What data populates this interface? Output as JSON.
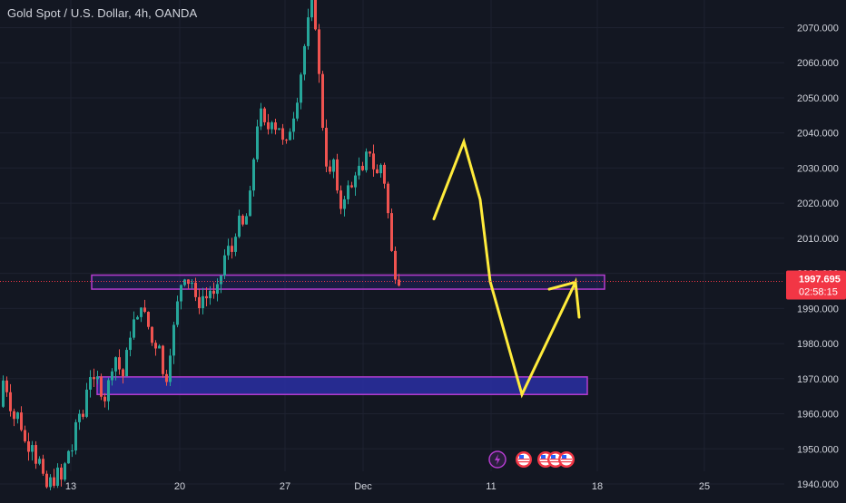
{
  "header": {
    "title": "Gold Spot / U.S. Dollar, 4h, OANDA"
  },
  "colors": {
    "background": "#131722",
    "grid": "#1e2230",
    "up": "#26a69a",
    "down": "#ef5350",
    "zone_fill": "#2a2fa3",
    "zone_border": "#b43ccf",
    "projection": "#ffeb3b",
    "price_badge": "#f23645",
    "axis_text": "#d1d4dc"
  },
  "price_badge": {
    "price": "1997.695",
    "countdown": "02:58:15"
  },
  "event_icons": [
    "lightning-icon",
    "us-flag-icon",
    "us-flag-icon",
    "us-flag-icon",
    "us-flag-icon"
  ],
  "chart_data": {
    "type": "candlestick",
    "title": "Gold Spot / U.S. Dollar, 4h, OANDA",
    "timeframe": "4h",
    "ylim": [
      1936,
      2078
    ],
    "y_ticks": [
      "2070.000",
      "2060.000",
      "2050.000",
      "2040.000",
      "2030.000",
      "2020.000",
      "2010.000",
      "2000.000",
      "1990.000",
      "1980.000",
      "1970.000",
      "1960.000",
      "1950.000",
      "1940.000"
    ],
    "x_ticks": [
      "13",
      "20",
      "27",
      "Dec",
      "11",
      "18",
      "25"
    ],
    "last_price": 1997.695,
    "price_path": [
      [
        0,
        1962
      ],
      [
        3,
        1970
      ],
      [
        7,
        1968
      ],
      [
        11,
        1963
      ],
      [
        15,
        1958
      ],
      [
        19,
        1961
      ],
      [
        23,
        1957
      ],
      [
        27,
        1953
      ],
      [
        31,
        1949
      ],
      [
        35,
        1954
      ],
      [
        39,
        1946
      ],
      [
        43,
        1948
      ],
      [
        47,
        1943
      ],
      [
        51,
        1938
      ],
      [
        55,
        1942
      ],
      [
        59,
        1939
      ],
      [
        63,
        1945
      ],
      [
        67,
        1940
      ],
      [
        71,
        1944
      ],
      [
        75,
        1950
      ],
      [
        79,
        1948
      ],
      [
        83,
        1955
      ],
      [
        87,
        1961
      ],
      [
        91,
        1957
      ],
      [
        95,
        1966
      ],
      [
        99,
        1972
      ],
      [
        103,
        1968
      ],
      [
        107,
        1971
      ],
      [
        111,
        1967
      ],
      [
        115,
        1963
      ],
      [
        119,
        1968
      ],
      [
        123,
        1972
      ],
      [
        127,
        1977
      ],
      [
        131,
        1974
      ],
      [
        135,
        1969
      ],
      [
        139,
        1976
      ],
      [
        143,
        1981
      ],
      [
        147,
        1987
      ],
      [
        151,
        1985
      ],
      [
        155,
        1992
      ],
      [
        159,
        1989
      ],
      [
        163,
        1986
      ],
      [
        167,
        1981
      ],
      [
        171,
        1978
      ],
      [
        175,
        1983
      ],
      [
        179,
        1972
      ],
      [
        183,
        1968
      ],
      [
        187,
        1976
      ],
      [
        191,
        1983
      ],
      [
        195,
        1990
      ],
      [
        199,
        1996
      ],
      [
        203,
        2000
      ],
      [
        207,
        1997
      ],
      [
        211,
        1999
      ],
      [
        215,
        1993
      ],
      [
        219,
        1990
      ],
      [
        223,
        1994
      ],
      [
        227,
        1992
      ],
      [
        231,
        1996
      ],
      [
        235,
        1993
      ],
      [
        239,
        1995
      ],
      [
        243,
        1998
      ],
      [
        247,
        2004
      ],
      [
        251,
        2008
      ],
      [
        255,
        2005
      ],
      [
        259,
        2010
      ],
      [
        263,
        2016
      ],
      [
        267,
        2013
      ],
      [
        271,
        2015
      ],
      [
        275,
        2020
      ],
      [
        279,
        2030
      ],
      [
        283,
        2041
      ],
      [
        287,
        2047
      ],
      [
        291,
        2043
      ],
      [
        295,
        2040
      ],
      [
        299,
        2045
      ],
      [
        303,
        2041
      ],
      [
        307,
        2043
      ],
      [
        311,
        2038
      ],
      [
        315,
        2036
      ],
      [
        319,
        2040
      ],
      [
        323,
        2044
      ],
      [
        327,
        2048
      ],
      [
        331,
        2055
      ],
      [
        335,
        2063
      ],
      [
        339,
        2070
      ],
      [
        343,
        2078
      ],
      [
        347,
        2074
      ],
      [
        351,
        2060
      ],
      [
        355,
        2045
      ],
      [
        359,
        2033
      ],
      [
        363,
        2026
      ],
      [
        367,
        2035
      ],
      [
        371,
        2024
      ],
      [
        375,
        2018
      ],
      [
        379,
        2021
      ],
      [
        383,
        2025
      ],
      [
        387,
        2023
      ],
      [
        391,
        2028
      ],
      [
        395,
        2031
      ],
      [
        399,
        2027
      ],
      [
        403,
        2033
      ],
      [
        407,
        2036
      ],
      [
        411,
        2031
      ],
      [
        415,
        2027
      ],
      [
        419,
        2032
      ],
      [
        423,
        2028
      ],
      [
        427,
        2020
      ],
      [
        431,
        2008
      ],
      [
        435,
        2000
      ],
      [
        439,
        1997.695
      ]
    ],
    "support_zones": [
      {
        "from": 1995.5,
        "to": 1999.5,
        "x_start": -2,
        "x_end": 124
      },
      {
        "from": 1965.5,
        "to": 1970.5,
        "x_start": -8,
        "x_end": 119
      }
    ],
    "annotations": [
      {
        "type": "polyline",
        "points": [
          [
            -62,
            2015.5
          ],
          [
            -29,
            2037.5
          ],
          [
            -11,
            2021
          ],
          [
            0,
            1997.695
          ]
        ]
      },
      {
        "type": "polyline",
        "points": [
          [
            0,
            1997.695
          ],
          [
            35,
            1965.5
          ],
          [
            94,
            1997.5
          ],
          [
            98,
            1987.5
          ]
        ]
      },
      {
        "type": "arrow-head",
        "points": [
          [
            65,
            1995.5
          ],
          [
            94,
            1997.5
          ]
        ]
      }
    ]
  }
}
